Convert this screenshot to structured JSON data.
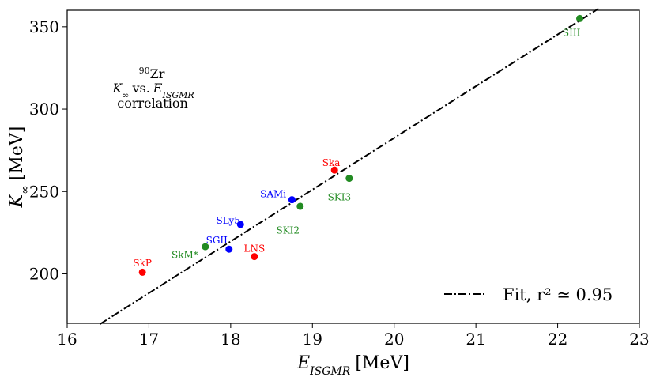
{
  "chart_data": {
    "type": "scatter",
    "title": "",
    "xlabel": "E_ISGMR [MeV]",
    "xlabel_main": "E",
    "xlabel_sub": "ISGMR",
    "xlabel_unit": "[MeV]",
    "ylabel": "K_∞ [MeV]",
    "ylabel_main": "K",
    "ylabel_sub": "∞",
    "ylabel_unit": "[MeV]",
    "xlim": [
      16,
      23
    ],
    "ylim": [
      170,
      360
    ],
    "xticks": [
      16,
      17,
      18,
      19,
      20,
      21,
      22,
      23
    ],
    "yticks": [
      200,
      250,
      300,
      350
    ],
    "colors": {
      "red": "#ff0000",
      "blue": "#0000ff",
      "green": "#228b22"
    },
    "points": [
      {
        "name": "SkP",
        "x": 16.92,
        "y": 201,
        "color": "#ff0000",
        "lx": 16.92,
        "ly": 204.5,
        "anchor": "middle"
      },
      {
        "name": "SkM*",
        "x": 17.69,
        "y": 216.5,
        "color": "#228b22",
        "lx": 17.44,
        "ly": 209.5,
        "anchor": "middle"
      },
      {
        "name": "SGII",
        "x": 17.98,
        "y": 215,
        "color": "#0000ff",
        "lx": 17.83,
        "ly": 218.5,
        "anchor": "middle"
      },
      {
        "name": "SLy5",
        "x": 18.12,
        "y": 230,
        "color": "#0000ff",
        "lx": 17.97,
        "ly": 230.5,
        "anchor": "middle"
      },
      {
        "name": "LNS",
        "x": 18.29,
        "y": 210.5,
        "color": "#ff0000",
        "lx": 18.29,
        "ly": 213.5,
        "anchor": "middle"
      },
      {
        "name": "SAMi",
        "x": 18.75,
        "y": 245,
        "color": "#0000ff",
        "lx": 18.52,
        "ly": 246.5,
        "anchor": "middle"
      },
      {
        "name": "SKI2",
        "x": 18.85,
        "y": 241,
        "color": "#228b22",
        "lx": 18.7,
        "ly": 224.5,
        "anchor": "middle"
      },
      {
        "name": "Ska",
        "x": 19.27,
        "y": 263,
        "color": "#ff0000",
        "lx": 19.23,
        "ly": 265.5,
        "anchor": "middle"
      },
      {
        "name": "SKI3",
        "x": 19.45,
        "y": 258,
        "color": "#228b22",
        "lx": 19.33,
        "ly": 244.5,
        "anchor": "middle"
      },
      {
        "name": "SIII",
        "x": 22.27,
        "y": 355,
        "color": "#228b22",
        "lx": 22.17,
        "ly": 344.5,
        "anchor": "middle"
      }
    ],
    "fit": {
      "x": [
        16.4,
        22.5
      ],
      "y": [
        169.5,
        361
      ],
      "style": "dashdot"
    },
    "legend": {
      "label": "Fit, r² ≃ 0.95",
      "position": "lower-right"
    },
    "annotation": {
      "line1": "90Zr",
      "line1_sup": "90",
      "line1_main": "Zr",
      "line2": "K∞ vs. EISGMR",
      "line2_k": "K",
      "line2_ksub": "∞",
      "line2_vs": "vs.",
      "line2_e": "E",
      "line2_esub": "ISGMR",
      "line3": "correlation"
    }
  }
}
